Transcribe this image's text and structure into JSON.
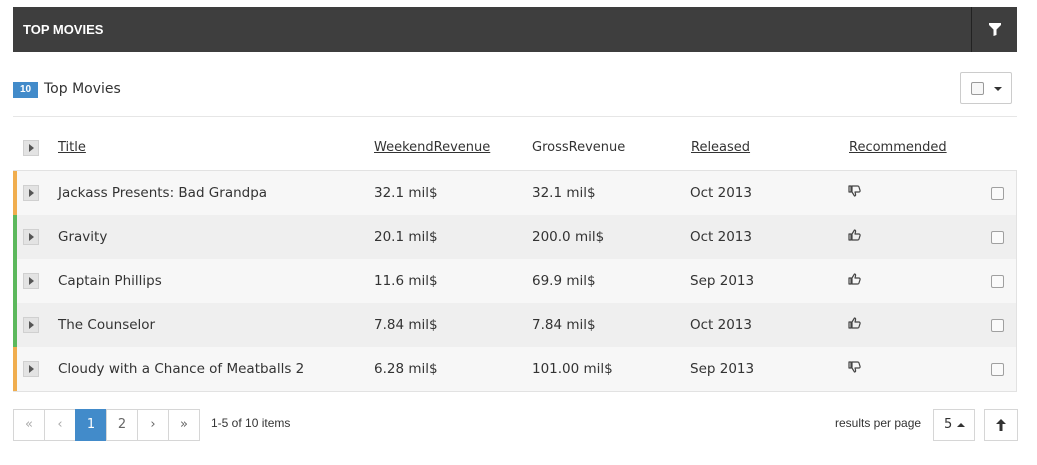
{
  "header": {
    "title": "TOP MOVIES",
    "filter_icon": "filter-icon"
  },
  "subheader": {
    "count": "10",
    "title": "Top Movies"
  },
  "colors": {
    "header_bg": "#3e3e3e",
    "accent": "#428bca",
    "recommended": "#5cb85c",
    "not_recommended": "#f0ad4e"
  },
  "columns": [
    "Title",
    "WeekendRevenue",
    "GrossRevenue",
    "Released",
    "Recommended"
  ],
  "rows": [
    {
      "title": "Jackass Presents: Bad Grandpa",
      "weekend": "32.1 mil$",
      "gross": "32.1 mil$",
      "released": "Oct 2013",
      "recommended": false
    },
    {
      "title": "Gravity",
      "weekend": "20.1 mil$",
      "gross": "200.0 mil$",
      "released": "Oct 2013",
      "recommended": true
    },
    {
      "title": "Captain Phillips",
      "weekend": "11.6 mil$",
      "gross": "69.9 mil$",
      "released": "Sep 2013",
      "recommended": true
    },
    {
      "title": "The Counselor",
      "weekend": "7.84 mil$",
      "gross": "7.84 mil$",
      "released": "Oct 2013",
      "recommended": true
    },
    {
      "title": "Cloudy with a Chance of Meatballs 2",
      "weekend": "6.28 mil$",
      "gross": "101.00 mil$",
      "released": "Sep 2013",
      "recommended": false
    }
  ],
  "pager": {
    "first": "«",
    "prev": "‹",
    "pages": [
      "1",
      "2"
    ],
    "current": "1",
    "next": "›",
    "last": "»",
    "info": "1-5 of 10 items",
    "per_page_label": "results per page",
    "per_page_value": "5"
  }
}
